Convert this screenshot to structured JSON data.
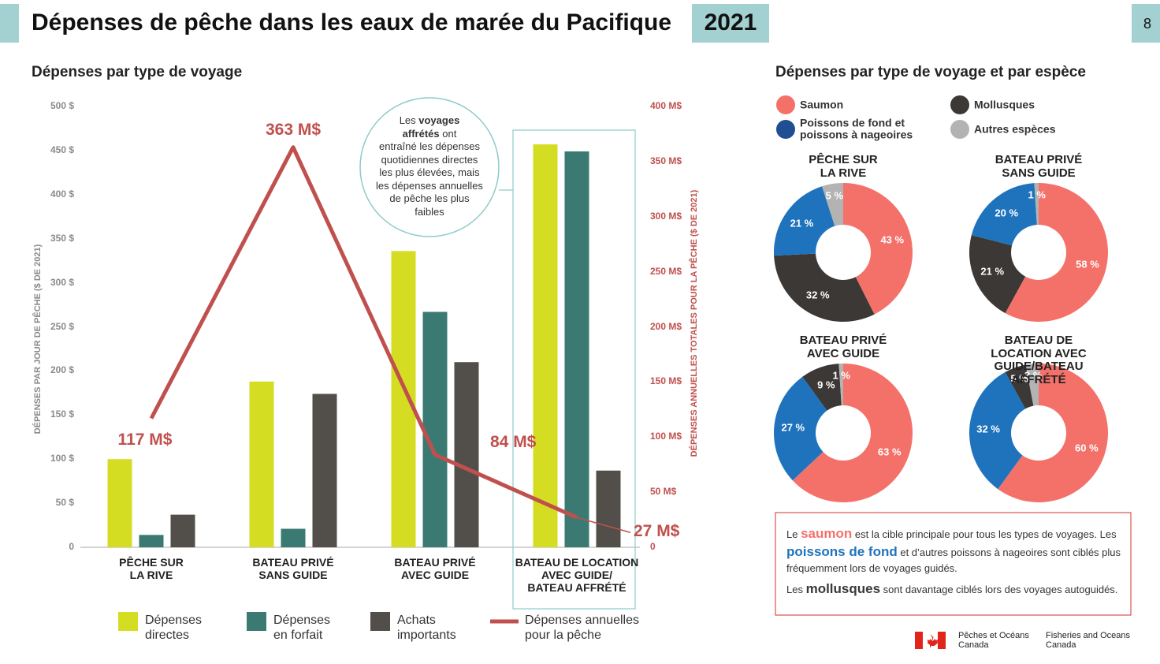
{
  "header": {
    "title": "Dépenses de pêche dans les eaux de marée du Pacifique",
    "year": "2021",
    "page": "8"
  },
  "chart_data": [
    {
      "type": "bar",
      "title": "Dépenses par type de voyage",
      "categories": [
        "PÊCHE SUR\nLA RIVE",
        "BATEAU PRIVÉ\nSANS GUIDE",
        "BATEAU PRIVÉ\nAVEC GUIDE",
        "BATEAU DE LOCATION\nAVEC GUIDE/\nBATEAU AFFRÉTÉ"
      ],
      "ylabel": "DÉPENSES PAR JOUR DE PÊCHE ($ DE 2021)",
      "y2label": "DÉPENSES ANNUELLES TOTALES POUR LA PÊCHE ($ DE 2021)",
      "ylim": [
        0,
        500
      ],
      "yticks": [
        0,
        {
          "value": 50,
          "label": "50 $"
        },
        {
          "value": 100,
          "label": "100 $"
        },
        {
          "value": 150,
          "label": "150 $"
        },
        {
          "value": 200,
          "label": "200 $"
        },
        {
          "value": 250,
          "label": "250 $"
        },
        {
          "value": 300,
          "label": "300 $"
        },
        {
          "value": 350,
          "label": "350 $"
        },
        {
          "value": 400,
          "label": "400 $"
        },
        {
          "value": 450,
          "label": "450 $"
        },
        {
          "value": 500,
          "label": "500 $"
        }
      ],
      "y2lim": [
        0,
        400
      ],
      "y2ticks": [
        0,
        {
          "value": 50,
          "label": "50 M$"
        },
        {
          "value": 100,
          "label": "100 M$"
        },
        {
          "value": 150,
          "label": "150 M$"
        },
        {
          "value": 200,
          "label": "200 M$"
        },
        {
          "value": 250,
          "label": "250 M$"
        },
        {
          "value": 300,
          "label": "300 M$"
        },
        {
          "value": 350,
          "label": "350 M$"
        },
        {
          "value": 400,
          "label": "400 M$"
        }
      ],
      "series": [
        {
          "name": "Dépenses\ndirectes",
          "color": "#d5dd22",
          "values": [
            100,
            188,
            336,
            457
          ]
        },
        {
          "name": "Dépenses\nen forfait",
          "color": "#3a7a72",
          "values": [
            14,
            21,
            267,
            449
          ]
        },
        {
          "name": "Achats\nimportants",
          "color": "#524f4a",
          "values": [
            37,
            174,
            210,
            87
          ]
        },
        {
          "name": "Dépenses annuelles\npour la pêche",
          "color": "#c0504d",
          "type": "line",
          "axis": "y2",
          "values": [
            117,
            363,
            84,
            27
          ],
          "value_labels": [
            "117 M$",
            "363 M$",
            "84 M$",
            "27 M$"
          ]
        }
      ],
      "annotation": [
        "Les ",
        "voyages\naffrétés",
        " ont\nentraîné les dépenses\nquotidiennes directes\nles plus élevées, mais\nles dépenses annuelles\nde pêche les plus\nfaibles"
      ]
    },
    {
      "type": "pie",
      "title": "PÊCHE SUR\nLA RIVE",
      "values": [
        43,
        32,
        21,
        5
      ],
      "value_labels": [
        "43 %",
        "32 %",
        "21 %",
        "5 %"
      ],
      "colors": [
        "#f4716a",
        "#3b3836",
        "#1f73bd",
        "#b3b3b3"
      ]
    },
    {
      "type": "pie",
      "title": "BATEAU PRIVÉ\nSANS GUIDE",
      "values": [
        58,
        21,
        20,
        1
      ],
      "value_labels": [
        "58 %",
        "21 %",
        "20 %",
        "1 %"
      ],
      "colors": [
        "#f4716a",
        "#3b3836",
        "#1f73bd",
        "#b3b3b3"
      ]
    },
    {
      "type": "pie",
      "title": "BATEAU PRIVÉ\nAVEC GUIDE",
      "values": [
        63,
        27,
        9,
        1
      ],
      "value_labels": [
        "63 %",
        "27 %",
        "9 %",
        "1 %"
      ],
      "colors": [
        "#f4716a",
        "#1f73bd",
        "#3b3836",
        "#b3b3b3"
      ]
    },
    {
      "type": "pie",
      "title": "BATEAU DE LOCATION AVEC\nGUIDE/BATEAU AFFRÉTÉ",
      "values": [
        60,
        32,
        5,
        3
      ],
      "value_labels": [
        "60 %",
        "32 %",
        "5 %",
        "3 %"
      ],
      "colors": [
        "#f4716a",
        "#1f73bd",
        "#3b3836",
        "#b3b3b3"
      ]
    }
  ],
  "species_panel": {
    "title": "Dépenses par type de voyage et par espèce",
    "legend": [
      {
        "name": "Saumon",
        "color": "#f4716a"
      },
      {
        "name": "Poissons de fond et\npoissons à nageoires",
        "color": "#1f4f92"
      },
      {
        "name": "Mollusques",
        "color": "#3b3836"
      },
      {
        "name": "Autres espèces",
        "color": "#b3b3b3"
      }
    ]
  },
  "note": {
    "paragraphs": [
      [
        "Le ",
        "saumon",
        " est la cible principale pour tous les types de voyages. Les ",
        "poissons de fond",
        " et d’autres poissons à nageoires sont ciblés plus fréquemment lors de voyages guidés."
      ],
      [
        "Les ",
        "mollusques",
        " sont davantage ciblés lors des voyages autoguidés."
      ]
    ]
  },
  "logo": {
    "fr": "Pêches et Océans\nCanada",
    "en": "Fisheries and Oceans\nCanada"
  }
}
